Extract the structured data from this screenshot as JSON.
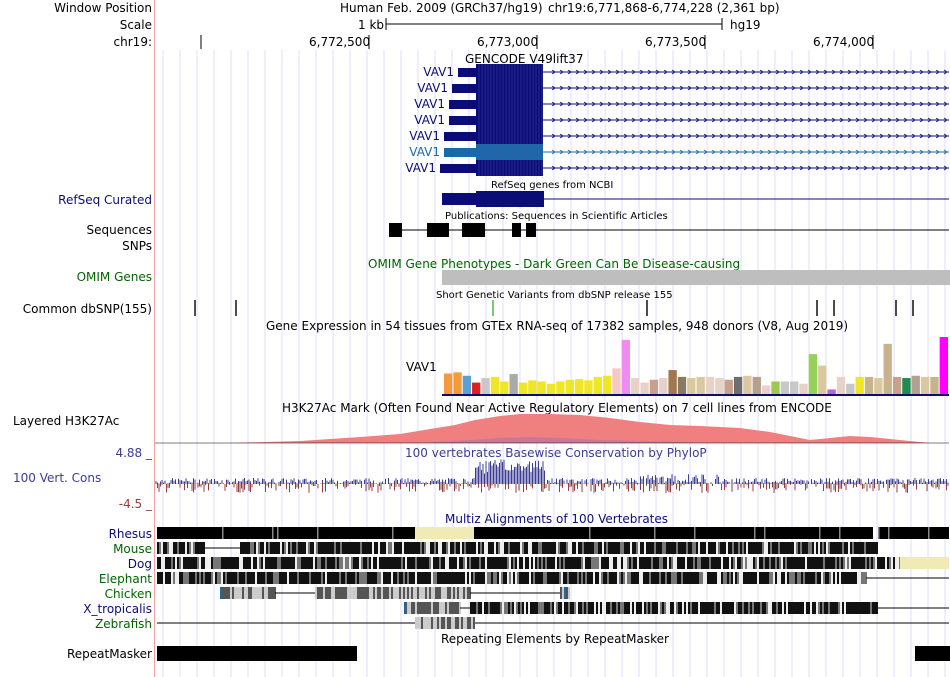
{
  "header": {
    "window_position_label": "Window Position",
    "scale_label": "Scale",
    "chrom_label": "chr19:",
    "assembly": "Human Feb. 2009 (GRCh37/hg19)",
    "position": "chr19:6,771,868-6,774,228 (2,361 bp)",
    "scale_text": "1 kb",
    "db": "hg19",
    "ticks": [
      "6,772,500",
      "6,773,000",
      "6,773,500",
      "6,774,000"
    ]
  },
  "tracks": {
    "gencode": {
      "title": "GENCODE V49lift37",
      "transcripts": [
        "VAV1",
        "VAV1",
        "VAV1",
        "VAV1",
        "VAV1",
        "VAV1",
        "VAV1"
      ],
      "highlight_index": 5
    },
    "refseq": {
      "label": "RefSeq Curated",
      "title": "RefSeq genes from NCBI"
    },
    "publications": {
      "label": "Sequences",
      "title": "Publications: Sequences in Scientific Articles"
    },
    "snps": {
      "label": "SNPs"
    },
    "omim": {
      "label": "OMIM Genes",
      "title": "OMIM Gene Phenotypes - Dark Green Can Be Disease-causing"
    },
    "dbsnp": {
      "label": "Common dbSNP(155)",
      "title": "Short Genetic Variants from dbSNP release 155"
    },
    "gtex": {
      "title": "Gene Expression in 54 tissues from GTEx RNA-seq of 17382 samples, 948 donors (V8, Aug 2019)",
      "gene": "VAV1"
    },
    "h3k27ac": {
      "label": "Layered H3K27Ac",
      "title": "H3K27Ac Mark (Often Found Near Active Regulatory Elements) on 7 cell lines from ENCODE"
    },
    "conservation": {
      "label": "100 Vert. Cons",
      "max": "4.88 _",
      "min": "-4.5 _",
      "title": "100 vertebrates Basewise Conservation by PhyloP"
    },
    "multiz": {
      "title": "Multiz Alignments of 100 Vertebrates",
      "species": [
        "Rhesus",
        "Mouse",
        "Dog",
        "Elephant",
        "Chicken",
        "X_tropicalis",
        "Zebrafish"
      ]
    },
    "repeatmasker": {
      "label": "RepeatMasker",
      "title": "Repeating Elements by RepeatMasker"
    }
  },
  "colors": {
    "gencode_blue": "#0c0c78",
    "gencode_highlight": "#1a6aa8",
    "refseq_label": "#0c0c78",
    "omim_label": "#006400",
    "omim_bar": "#bebebe",
    "h3k27ac": "#f08080",
    "conservation_pos": "#3c3c96",
    "conservation_neg": "#963c3c",
    "multiz_label_blue": "#0c0c78",
    "multiz_label_green": "#006400",
    "guide_line": "#c8c8ff"
  },
  "gtex_bars": {
    "tissue_colors": [
      "#f59a3c",
      "#f59a3c",
      "#5aa0d2",
      "#e02020",
      "#c8c8c8",
      "#f0e628",
      "#f0e628",
      "#aaaaaa",
      "#f0e628",
      "#f0e628",
      "#f0e628",
      "#f0e628",
      "#f0e628",
      "#f0e628",
      "#f0e628",
      "#f0e628",
      "#f0e628",
      "#f0e628",
      "#f5c8c8",
      "#f08cf0",
      "#e8d2c8",
      "#e8d2c8",
      "#c8a08c",
      "#e8d2c8",
      "#a07850",
      "#8c7860",
      "#dcc8a0",
      "#dcc8a0",
      "#e8d2c8",
      "#e8d2c8",
      "#c8a08c",
      "#6e6e6e",
      "#dcc8a0",
      "#b4a08c",
      "#e8d2c8",
      "#a0c850",
      "#c8c8c8",
      "#c8c8c8",
      "#e8d2c8",
      "#96d25a",
      "#dcc8a0",
      "#b464dc",
      "#e8d2c8",
      "#c8c8c8",
      "#f0e628",
      "#c8b48c",
      "#dcc8a0",
      "#c8b48c",
      "#c8a08c",
      "#208c50",
      "#b4a08c",
      "#dcc8a0",
      "#c8b48c",
      "#ff00ff"
    ],
    "values": [
      0.36,
      0.38,
      0.32,
      0.2,
      0.28,
      0.3,
      0.22,
      0.35,
      0.2,
      0.24,
      0.22,
      0.18,
      0.22,
      0.25,
      0.26,
      0.24,
      0.3,
      0.32,
      0.45,
      0.95,
      0.28,
      0.2,
      0.25,
      0.28,
      0.42,
      0.3,
      0.28,
      0.3,
      0.3,
      0.28,
      0.25,
      0.3,
      0.32,
      0.3,
      0.15,
      0.22,
      0.22,
      0.22,
      0.18,
      0.7,
      0.5,
      0.08,
      0.3,
      0.18,
      0.3,
      0.3,
      0.28,
      0.88,
      0.3,
      0.28,
      0.32,
      0.3,
      0.3,
      1.0
    ]
  }
}
